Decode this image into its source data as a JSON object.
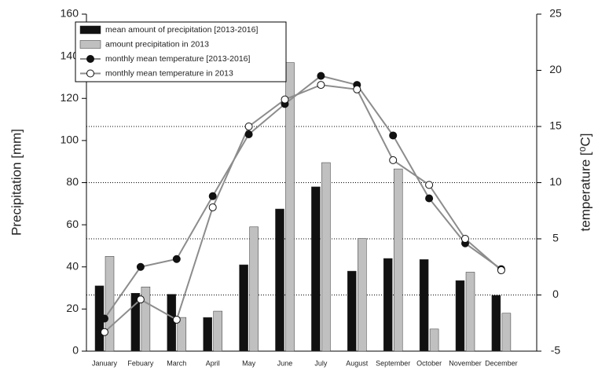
{
  "chart_data": {
    "type": "bar_line",
    "ylabel": "Precipitation [mm]",
    "y2label": "temperature [⁰C]",
    "categories": [
      "January",
      "Febuary",
      "March",
      "April",
      "May",
      "June",
      "July",
      "August",
      "September",
      "October",
      "November",
      "December"
    ],
    "ylim": [
      0,
      160
    ],
    "yticks": [
      0,
      20,
      40,
      60,
      80,
      100,
      120,
      140,
      160
    ],
    "y2lim": [
      -5,
      25
    ],
    "y2ticks": [
      -5,
      0,
      5,
      10,
      15,
      20,
      25
    ],
    "y2grid": [
      0,
      5,
      10,
      15
    ],
    "legend": "upper left",
    "series": [
      {
        "name": "mean amount of precipitation [2013-2016]",
        "type": "bar",
        "color": "#111111",
        "values": [
          31,
          27.5,
          27,
          16,
          41,
          67.5,
          78,
          38,
          44,
          43.5,
          33.5,
          26.5
        ]
      },
      {
        "name": "amount precipitation in 2013",
        "type": "bar",
        "color": "#c0c0c0",
        "values": [
          45,
          30.5,
          16,
          19,
          59,
          137,
          89.5,
          53.5,
          86.5,
          10.5,
          37.5,
          18
        ]
      },
      {
        "name": "monthly mean temperature [2013-2016]",
        "type": "line",
        "axis": "y2",
        "color": "#111111",
        "values": [
          -2.1,
          2.5,
          3.2,
          8.8,
          14.3,
          17.0,
          19.5,
          18.7,
          14.2,
          8.6,
          4.6,
          2.3
        ]
      },
      {
        "name": "monthly mean temperature in 2013",
        "type": "line",
        "axis": "y2",
        "color": "#ffffff",
        "values": [
          -3.3,
          -0.4,
          -2.2,
          7.8,
          15.0,
          17.4,
          18.7,
          18.3,
          12.0,
          9.8,
          5.0,
          2.2
        ]
      }
    ]
  }
}
